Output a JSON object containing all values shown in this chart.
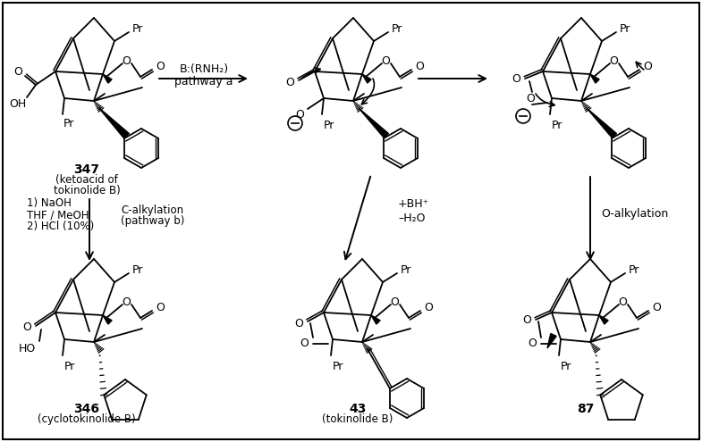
{
  "bg_color": "#ffffff",
  "fig_width": 7.85,
  "fig_height": 4.95,
  "dpi": 100,
  "labels": {
    "reagent_top1": "B:(RNH₂)",
    "reagent_top2": "pathway a",
    "reagent_left1": "1) NaOH",
    "reagent_left2": "THF / MeOH",
    "reagent_left3": "2) HCl (10%)",
    "label_c_alkylation1": "C-alkylation",
    "label_c_alkylation2": "(pathway b)",
    "label_bh": "+BH⁺",
    "label_h2o": "–H₂O",
    "label_o_alkylation": "O-alkylation",
    "compound_347": "347",
    "compound_347_desc": "(ketoacid of",
    "compound_347_desc2": "tokinolide B)",
    "compound_346": "346",
    "compound_346_desc": "(cyclotokinolide B)",
    "compound_43": "43",
    "compound_43_desc": "(tokinolide B)",
    "compound_87": "87"
  }
}
